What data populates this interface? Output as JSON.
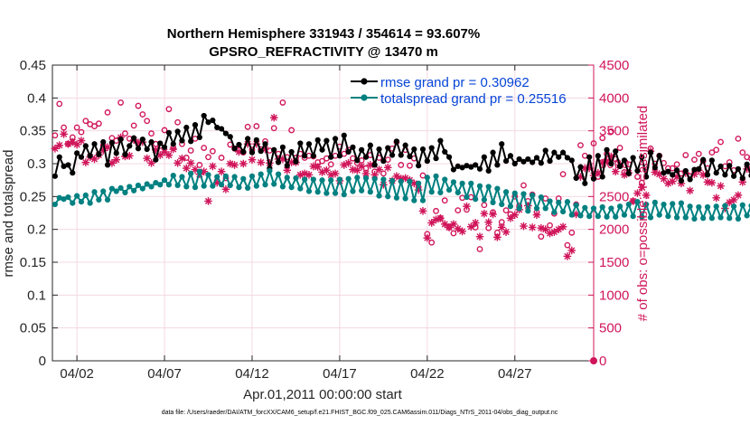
{
  "chart_data": {
    "type": "line",
    "title": "Northern Hemisphere 331943 / 354614 = 93.607%",
    "subtitle": "GPSRO_REFRACTIVITY @ 13470 m",
    "xlabel": "Apr.01,2011 00:00:00 start",
    "ylabel_left": "rmse and totalspread",
    "ylabel_right": "# of obs: o=possible; ∗=assimilated",
    "footer": "data file: /Users/raeder/DAI/ATM_forcXX/CAM6_setup/f.e21.FHIST_BGC.f09_025.CAM6assim.011/Diags_NTrS_2011-04/obs_diag_output.nc",
    "xlim": [
      0.6,
      31.5
    ],
    "ylim_left": [
      0,
      0.45
    ],
    "ylim_right": [
      0,
      4500
    ],
    "x_ticks": [
      2,
      7,
      12,
      17,
      22,
      27
    ],
    "x_tick_labels": [
      "04/02",
      "04/07",
      "04/12",
      "04/17",
      "04/22",
      "04/27"
    ],
    "y_left_ticks": [
      "0",
      "0.05",
      "0.1",
      "0.15",
      "0.2",
      "0.25",
      "0.3",
      "0.35",
      "0.4",
      "0.45"
    ],
    "y_right_ticks": [
      "0",
      "500",
      "1000",
      "1500",
      "2000",
      "2500",
      "3000",
      "3500",
      "4000",
      "4500"
    ],
    "x_start": 0.75,
    "x_step": 0.25,
    "series": [
      {
        "name": "rmse grand pr = 0.30962",
        "color": "#000000",
        "axis": "left",
        "values": [
          0.281,
          0.31,
          0.296,
          0.298,
          0.286,
          0.316,
          0.31,
          0.327,
          0.312,
          0.33,
          0.314,
          0.333,
          0.298,
          0.332,
          0.316,
          0.337,
          0.314,
          0.327,
          0.339,
          0.323,
          0.337,
          0.322,
          0.333,
          0.306,
          0.331,
          0.325,
          0.347,
          0.33,
          0.349,
          0.335,
          0.355,
          0.334,
          0.359,
          0.34,
          0.373,
          0.363,
          0.366,
          0.355,
          0.353,
          0.346,
          0.341,
          0.323,
          0.329,
          0.318,
          0.338,
          0.317,
          0.336,
          0.319,
          0.33,
          0.293,
          0.321,
          0.302,
          0.325,
          0.297,
          0.318,
          0.303,
          0.331,
          0.312,
          0.33,
          0.312,
          0.336,
          0.321,
          0.335,
          0.31,
          0.338,
          0.312,
          0.343,
          0.318,
          0.325,
          0.305,
          0.321,
          0.31,
          0.328,
          0.298,
          0.322,
          0.304,
          0.324,
          0.313,
          0.334,
          0.313,
          0.328,
          0.311,
          0.322,
          0.297,
          0.322,
          0.304,
          0.324,
          0.308,
          0.335,
          0.318,
          0.31,
          0.291,
          0.296,
          0.294,
          0.297,
          0.295,
          0.298,
          0.292,
          0.31,
          0.289,
          0.317,
          0.298,
          0.33,
          0.304,
          0.312,
          0.3,
          0.307,
          0.303,
          0.307,
          0.302,
          0.309,
          0.301,
          0.32,
          0.304,
          0.317,
          0.31,
          0.317,
          0.309,
          0.305,
          0.278,
          0.295,
          0.27,
          0.31,
          0.277,
          0.312,
          0.28,
          0.321,
          0.3,
          0.319,
          0.296,
          0.305,
          0.285,
          0.309,
          0.289,
          0.31,
          0.28,
          0.317,
          0.294,
          0.312,
          0.286,
          0.288,
          0.283,
          0.29,
          0.274,
          0.289,
          0.276,
          0.291,
          0.292,
          0.306,
          0.283,
          0.305,
          0.286,
          0.296,
          0.283,
          0.297,
          0.281,
          0.292,
          0.278,
          0.299,
          0.282,
          0.3,
          0.283,
          0.302,
          0.276,
          0.289,
          0.278,
          0.285,
          0.28,
          0.288,
          0.276,
          0.285,
          0.273,
          0.29,
          0.272,
          0.285,
          0.277,
          0.329,
          0.31,
          0.318,
          0.284,
          0.284,
          0.281
        ]
      },
      {
        "name": "totalspread grand pr = 0.25516",
        "color": "#008080",
        "axis": "left",
        "values": [
          0.238,
          0.248,
          0.246,
          0.249,
          0.24,
          0.251,
          0.242,
          0.252,
          0.24,
          0.257,
          0.245,
          0.258,
          0.245,
          0.262,
          0.258,
          0.263,
          0.256,
          0.265,
          0.259,
          0.267,
          0.262,
          0.269,
          0.265,
          0.271,
          0.268,
          0.275,
          0.268,
          0.282,
          0.267,
          0.28,
          0.265,
          0.285,
          0.264,
          0.288,
          0.266,
          0.283,
          0.266,
          0.28,
          0.268,
          0.281,
          0.267,
          0.28,
          0.264,
          0.277,
          0.263,
          0.281,
          0.266,
          0.284,
          0.268,
          0.289,
          0.269,
          0.284,
          0.265,
          0.279,
          0.264,
          0.278,
          0.262,
          0.276,
          0.258,
          0.276,
          0.257,
          0.275,
          0.255,
          0.275,
          0.255,
          0.276,
          0.253,
          0.277,
          0.258,
          0.279,
          0.259,
          0.278,
          0.257,
          0.277,
          0.251,
          0.276,
          0.25,
          0.274,
          0.248,
          0.273,
          0.247,
          0.273,
          0.244,
          0.27,
          0.244,
          0.279,
          0.257,
          0.281,
          0.256,
          0.276,
          0.26,
          0.272,
          0.256,
          0.27,
          0.249,
          0.27,
          0.246,
          0.266,
          0.245,
          0.265,
          0.241,
          0.262,
          0.238,
          0.257,
          0.235,
          0.255,
          0.232,
          0.254,
          0.228,
          0.252,
          0.232,
          0.249,
          0.232,
          0.243,
          0.226,
          0.241,
          0.227,
          0.242,
          0.222,
          0.237,
          0.221,
          0.233,
          0.22,
          0.232,
          0.22,
          0.234,
          0.219,
          0.232,
          0.219,
          0.235,
          0.222,
          0.238,
          0.22,
          0.242,
          0.219,
          0.238,
          0.218,
          0.241,
          0.222,
          0.238,
          0.22,
          0.239,
          0.218,
          0.24,
          0.218,
          0.235,
          0.216,
          0.234,
          0.217,
          0.234,
          0.217,
          0.235,
          0.218,
          0.236,
          0.217,
          0.235,
          0.216,
          0.237,
          0.221,
          0.236,
          0.22,
          0.24,
          0.224,
          0.238,
          0.221,
          0.236,
          0.222,
          0.24,
          0.224,
          0.239,
          0.224,
          0.238,
          0.226,
          0.241,
          0.228,
          0.243,
          0.228,
          0.256,
          0.23,
          0.259,
          0.239,
          0.257,
          0.233,
          0.23
        ]
      },
      {
        "name": "possible",
        "color": "#d0155a",
        "axis": "right",
        "marker": "o",
        "values": [
          3430,
          3910,
          3550,
          3300,
          3400,
          3550,
          3480,
          3650,
          3600,
          3570,
          3610,
          3280,
          3780,
          3390,
          3350,
          3930,
          3460,
          3380,
          3580,
          3880,
          3750,
          3650,
          3460,
          3300,
          3270,
          3510,
          3830,
          3240,
          3630,
          3300,
          3090,
          3200,
          3380,
          2980,
          3240,
          3100,
          3190,
          2740,
          3090,
          2780,
          3290,
          3230,
          3210,
          3170,
          3560,
          3210,
          3570,
          3220,
          3340,
          3200,
          3540,
          3150,
          3930,
          3100,
          3510,
          3090,
          3150,
          3090,
          3120,
          3110,
          3020,
          3040,
          3080,
          2990,
          3120,
          3260,
          3150,
          3210,
          3080,
          3010,
          3050,
          2930,
          3130,
          2880,
          3090,
          2850,
          3060,
          3230,
          3330,
          2980,
          3210,
          2970,
          3080,
          2640,
          2820,
          1930,
          1800,
          2280,
          2170,
          2440,
          2030,
          1940,
          2290,
          2480,
          2300,
          2490,
          2030,
          1700,
          2370,
          2020,
          2260,
          1950,
          2110,
          2290,
          2230,
          2500,
          2360,
          2670,
          2430,
          2530,
          2260,
          1890,
          2470,
          2060,
          2240,
          2470,
          2840,
          1760,
          1950,
          2380,
          3280,
          3120,
          2960,
          3310,
          2800,
          3390,
          3150,
          3490,
          3070,
          3240,
          2870,
          2990,
          2430,
          2800,
          2710,
          2950,
          3230,
          3000,
          3120,
          3010,
          2930,
          2930,
          2990,
          2850,
          3130,
          2810,
          3060,
          3150,
          3040,
          2930,
          3170,
          3210,
          3330,
          2960,
          3020,
          2900,
          3380,
          3170,
          3100,
          3080,
          3210,
          3080,
          3010,
          2930,
          2990,
          2860,
          3020,
          3090,
          3100,
          3240,
          3060,
          3320,
          3050,
          2970,
          2890,
          2870,
          3050,
          3010,
          2980,
          3040,
          2000,
          2850,
          2940,
          3330,
          3170,
          3100,
          2980,
          3180,
          4000,
          3520,
          3140,
          3100
        ]
      },
      {
        "name": "assimilated",
        "color": "#d0155a",
        "axis": "right",
        "marker": "*",
        "values": [
          3230,
          3280,
          3450,
          3300,
          3330,
          3290,
          3350,
          3020,
          3100,
          3070,
          3130,
          3200,
          3250,
          3010,
          3060,
          3400,
          3110,
          3120,
          3360,
          3320,
          3330,
          3080,
          3010,
          3210,
          3130,
          3180,
          3130,
          3220,
          3010,
          3080,
          2930,
          3010,
          2910,
          2840,
          2880,
          2430,
          2960,
          2710,
          2880,
          2610,
          3000,
          2980,
          3180,
          3000,
          3300,
          3060,
          3300,
          3020,
          3220,
          3010,
          3700,
          3070,
          3070,
          2900,
          3020,
          3020,
          2830,
          2850,
          2830,
          2960,
          2950,
          2870,
          2900,
          2830,
          2850,
          2740,
          2980,
          3010,
          2910,
          2900,
          2960,
          2850,
          2980,
          2830,
          2910,
          2680,
          2940,
          2740,
          2810,
          2770,
          2780,
          2750,
          2700,
          2600,
          2280,
          1870,
          2100,
          2150,
          2170,
          2080,
          2030,
          2080,
          2010,
          1970,
          2350,
          2040,
          2100,
          1890,
          2240,
          2110,
          2230,
          1880,
          2030,
          1960,
          2170,
          2220,
          2300,
          2050,
          2360,
          2030,
          2220,
          2020,
          2000,
          1940,
          1960,
          2000,
          2040,
          1590,
          1680,
          2230,
          2800,
          2930,
          2930,
          2820,
          2860,
          3010,
          3040,
          3110,
          2880,
          2980,
          2830,
          2860,
          2430,
          2550,
          2640,
          2520,
          3190,
          2870,
          2840,
          2770,
          2700,
          2730,
          2800,
          2700,
          2860,
          2590,
          2840,
          2900,
          2830,
          2720,
          2710,
          2480,
          2660,
          2320,
          2410,
          2450,
          2520,
          2720,
          2920,
          2910,
          2780,
          2990,
          2830,
          2780,
          2840,
          2630,
          2960,
          2950,
          3010,
          3110,
          3010,
          3160,
          3000,
          2960,
          2830,
          2880,
          3010,
          2880,
          2940,
          2960,
          1930,
          2920,
          2370,
          2870,
          2340,
          2920,
          2650,
          2400,
          2310,
          2540,
          3610,
          3000
        ]
      },
      {
        "name": "no-obs marker",
        "color": "#d0155a",
        "axis": "right",
        "marker": "end",
        "values": [
          0
        ],
        "x": [
          31.5
        ]
      }
    ]
  }
}
